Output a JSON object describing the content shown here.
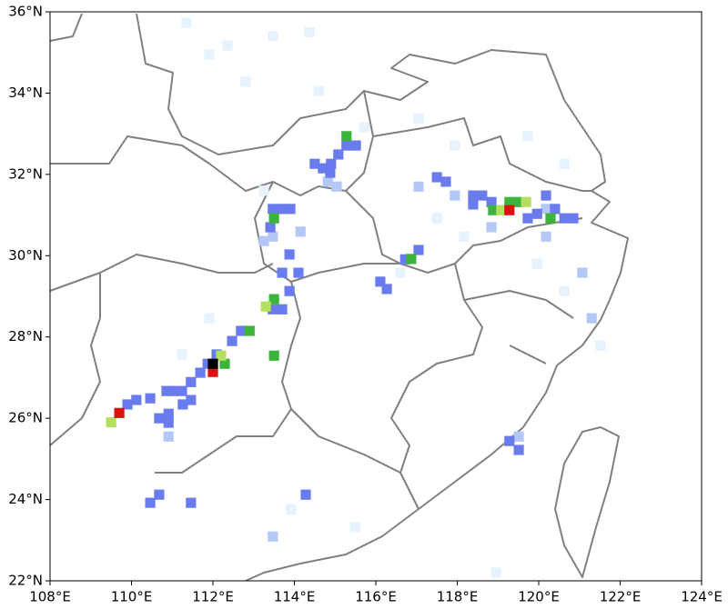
{
  "chart_data": {
    "type": "grid-map",
    "xlim": [
      108,
      124
    ],
    "ylim": [
      22,
      36
    ],
    "cell_size": 0.25,
    "xticks": [
      {
        "value": 108,
        "label": "108°E"
      },
      {
        "value": 110,
        "label": "110°E"
      },
      {
        "value": 112,
        "label": "112°E"
      },
      {
        "value": 114,
        "label": "114°E"
      },
      {
        "value": 116,
        "label": "116°E"
      },
      {
        "value": 118,
        "label": "118°E"
      },
      {
        "value": 120,
        "label": "120°E"
      },
      {
        "value": 122,
        "label": "122°E"
      },
      {
        "value": 124,
        "label": "124°E"
      }
    ],
    "yticks": [
      {
        "value": 22,
        "label": "22°N"
      },
      {
        "value": 24,
        "label": "24°N"
      },
      {
        "value": 26,
        "label": "26°N"
      },
      {
        "value": 28,
        "label": "28°N"
      },
      {
        "value": 30,
        "label": "30°N"
      },
      {
        "value": 32,
        "label": "32°N"
      },
      {
        "value": 34,
        "label": "34°N"
      },
      {
        "value": 36,
        "label": "36°N"
      }
    ],
    "series": [
      {
        "color": "#e6f2fe",
        "x": [
          111.91,
          112.36,
          112.8,
          113.47,
          114.37,
          114.6,
          115.71,
          117.05,
          117.94,
          119.73,
          120.63,
          113.25,
          117.5,
          116.6,
          119.96,
          120.63,
          111.91,
          111.24,
          113.92,
          115.49,
          118.95,
          121.52,
          111.35,
          118.17
        ],
        "y": [
          34.95,
          35.17,
          34.28,
          35.4,
          35.5,
          34.05,
          33.16,
          33.38,
          32.71,
          32.94,
          32.26,
          31.6,
          30.92,
          29.58,
          29.8,
          29.13,
          28.46,
          27.57,
          23.76,
          23.32,
          22.2,
          27.79,
          35.73,
          30.47
        ]
      },
      {
        "color": "#b4c8f8",
        "x": [
          113.47,
          113.25,
          114.15,
          114.82,
          115.04,
          117.05,
          117.94,
          118.84,
          120.18,
          121.07,
          121.3,
          119.51,
          110.91,
          113.47,
          120.18
        ],
        "y": [
          30.47,
          30.36,
          30.59,
          31.82,
          31.7,
          31.7,
          31.48,
          30.7,
          30.47,
          29.58,
          28.46,
          25.55,
          25.55,
          23.09,
          31.15
        ]
      },
      {
        "color": "#6a7bee",
        "x": [
          114.9,
          114.7,
          114.5,
          115.08,
          115.28,
          114.88,
          115.51,
          113.47,
          113.7,
          113.9,
          113.41,
          113.88,
          114.1,
          113.7,
          113.88,
          113.7,
          113.47,
          112.69,
          112.47,
          112.09,
          111.87,
          111.69,
          111.46,
          111.24,
          111.02,
          110.86,
          111.46,
          111.26,
          110.91,
          110.91,
          110.68,
          110.12,
          109.9,
          110.46,
          116.72,
          117.05,
          116.11,
          116.27,
          117.5,
          117.72,
          118.39,
          118.61,
          118.39,
          118.84,
          119.73,
          119.96,
          120.18,
          120.4,
          120.63,
          120.85,
          119.28,
          119.51,
          114.28,
          110.68,
          111.46,
          110.46
        ],
        "y": [
          32.26,
          32.15,
          32.26,
          32.49,
          32.71,
          32.04,
          32.71,
          31.15,
          31.15,
          31.15,
          30.7,
          30.03,
          29.58,
          29.58,
          29.13,
          28.68,
          28.68,
          28.15,
          27.9,
          27.57,
          27.34,
          27.12,
          26.89,
          26.67,
          26.67,
          26.67,
          26.45,
          26.34,
          26.11,
          25.89,
          26.0,
          26.45,
          26.34,
          26.49,
          29.91,
          30.14,
          29.36,
          29.18,
          31.93,
          31.82,
          31.48,
          31.48,
          31.26,
          31.32,
          30.92,
          31.03,
          31.48,
          31.15,
          30.92,
          30.92,
          25.44,
          25.22,
          24.12,
          24.12,
          23.92,
          23.92
        ]
      },
      {
        "color": "#3cb43c",
        "x": [
          115.28,
          113.5,
          113.5,
          112.9,
          113.5,
          116.87,
          118.88,
          119.28,
          119.48,
          120.29,
          112.29
        ],
        "y": [
          32.94,
          30.92,
          28.93,
          28.15,
          27.54,
          29.92,
          31.12,
          31.32,
          31.32,
          30.92,
          27.34
        ]
      },
      {
        "color": "#b4e060",
        "x": [
          113.3,
          119.08,
          119.69,
          112.2,
          109.5
        ],
        "y": [
          28.75,
          31.12,
          31.32,
          27.54,
          25.9
        ]
      },
      {
        "color": "#dd1010",
        "x": [
          109.7,
          112.0,
          119.28
        ],
        "y": [
          26.13,
          27.14,
          31.12
        ]
      },
      {
        "color": "#000000",
        "x": [
          112.0
        ],
        "y": [
          27.34
        ]
      }
    ]
  }
}
